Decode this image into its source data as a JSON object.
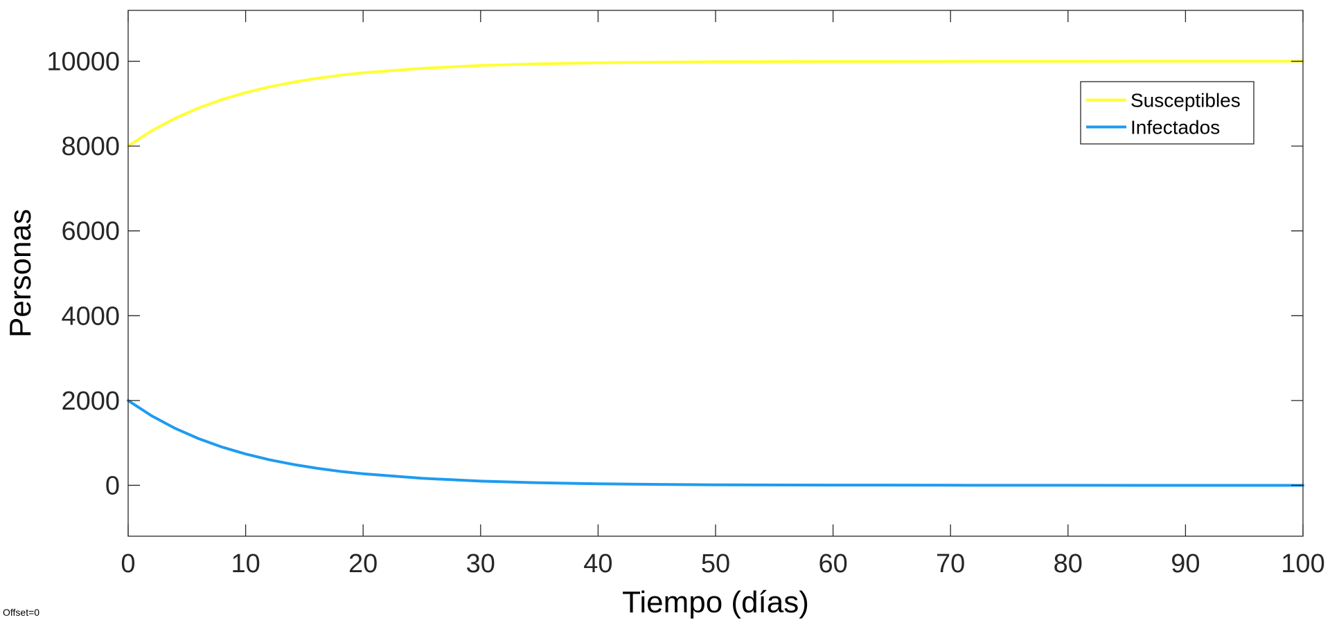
{
  "chart_data": {
    "type": "line",
    "xlabel": "Tiempo (días)",
    "ylabel": "Personas",
    "xlim": [
      0,
      100
    ],
    "ylim": [
      -1200,
      11200
    ],
    "xticks": [
      0,
      10,
      20,
      30,
      40,
      50,
      60,
      70,
      80,
      90,
      100
    ],
    "yticks": [
      0,
      2000,
      4000,
      6000,
      8000,
      10000
    ],
    "grid": false,
    "legend_position": "top-right",
    "x": [
      0,
      2,
      4,
      6,
      8,
      10,
      12,
      14,
      16,
      18,
      20,
      25,
      30,
      35,
      40,
      45,
      50,
      60,
      70,
      80,
      90,
      100
    ],
    "series": [
      {
        "name": "Susceptibles",
        "color": "#FFFF33",
        "values": [
          8000,
          8361,
          8657,
          8899,
          9098,
          9262,
          9395,
          9505,
          9595,
          9669,
          9729,
          9835,
          9901,
          9940,
          9964,
          9978,
          9987,
          9995,
          9998,
          9999,
          10000,
          10000
        ]
      },
      {
        "name": "Infectados",
        "color": "#1E9BF0",
        "values": [
          2000,
          1639,
          1343,
          1101,
          902,
          738,
          605,
          495,
          405,
          331,
          271,
          165,
          99,
          60,
          36,
          22,
          13,
          5,
          2,
          1,
          0,
          0
        ]
      }
    ]
  },
  "footer": {
    "offset_note": "Offset=0"
  }
}
